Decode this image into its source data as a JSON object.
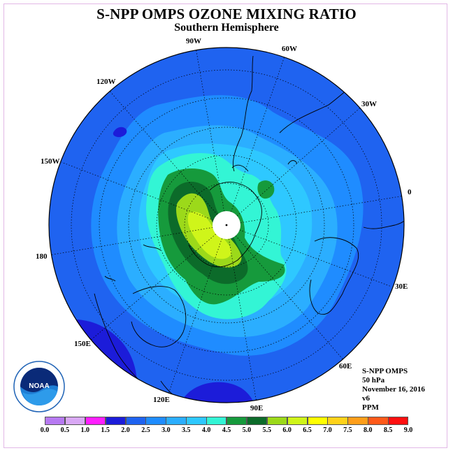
{
  "title": "S-NPP OMPS OZONE MIXING RATIO",
  "subtitle": "Southern Hemisphere",
  "longitude_labels": [
    "90W",
    "60W",
    "30W",
    "0",
    "30E",
    "60E",
    "90E",
    "120E",
    "150E",
    "180",
    "150W",
    "120W"
  ],
  "info": {
    "instrument": "S-NPP OMPS",
    "level": "50 hPa",
    "date": "November 16, 2016",
    "version": "v6",
    "units": "PPM"
  },
  "logo_text": "NOAA",
  "colorbar": {
    "ticks": [
      "0.0",
      "0.5",
      "1.0",
      "1.5",
      "2.0",
      "2.5",
      "3.0",
      "3.5",
      "4.0",
      "4.5",
      "5.0",
      "5.5",
      "6.0",
      "6.5",
      "7.0",
      "7.5",
      "8.0",
      "8.5",
      "9.0"
    ],
    "colors": [
      "#b77af2",
      "#d9a8f5",
      "#ff1fff",
      "#1c1cd9",
      "#1f63f0",
      "#1f8cff",
      "#2baeff",
      "#2ec8ff",
      "#33f5d5",
      "#169a3c",
      "#0c6b2a",
      "#9cd91a",
      "#cff51a",
      "#ffff00",
      "#ffd21a",
      "#ff9e1a",
      "#ff5a1a",
      "#ff1010",
      "#7a4a3a"
    ]
  },
  "colors": {
    "ocean_bg": "#1f63f0",
    "frame": "#e2b8e6",
    "pole_hole": "#ffffff"
  }
}
